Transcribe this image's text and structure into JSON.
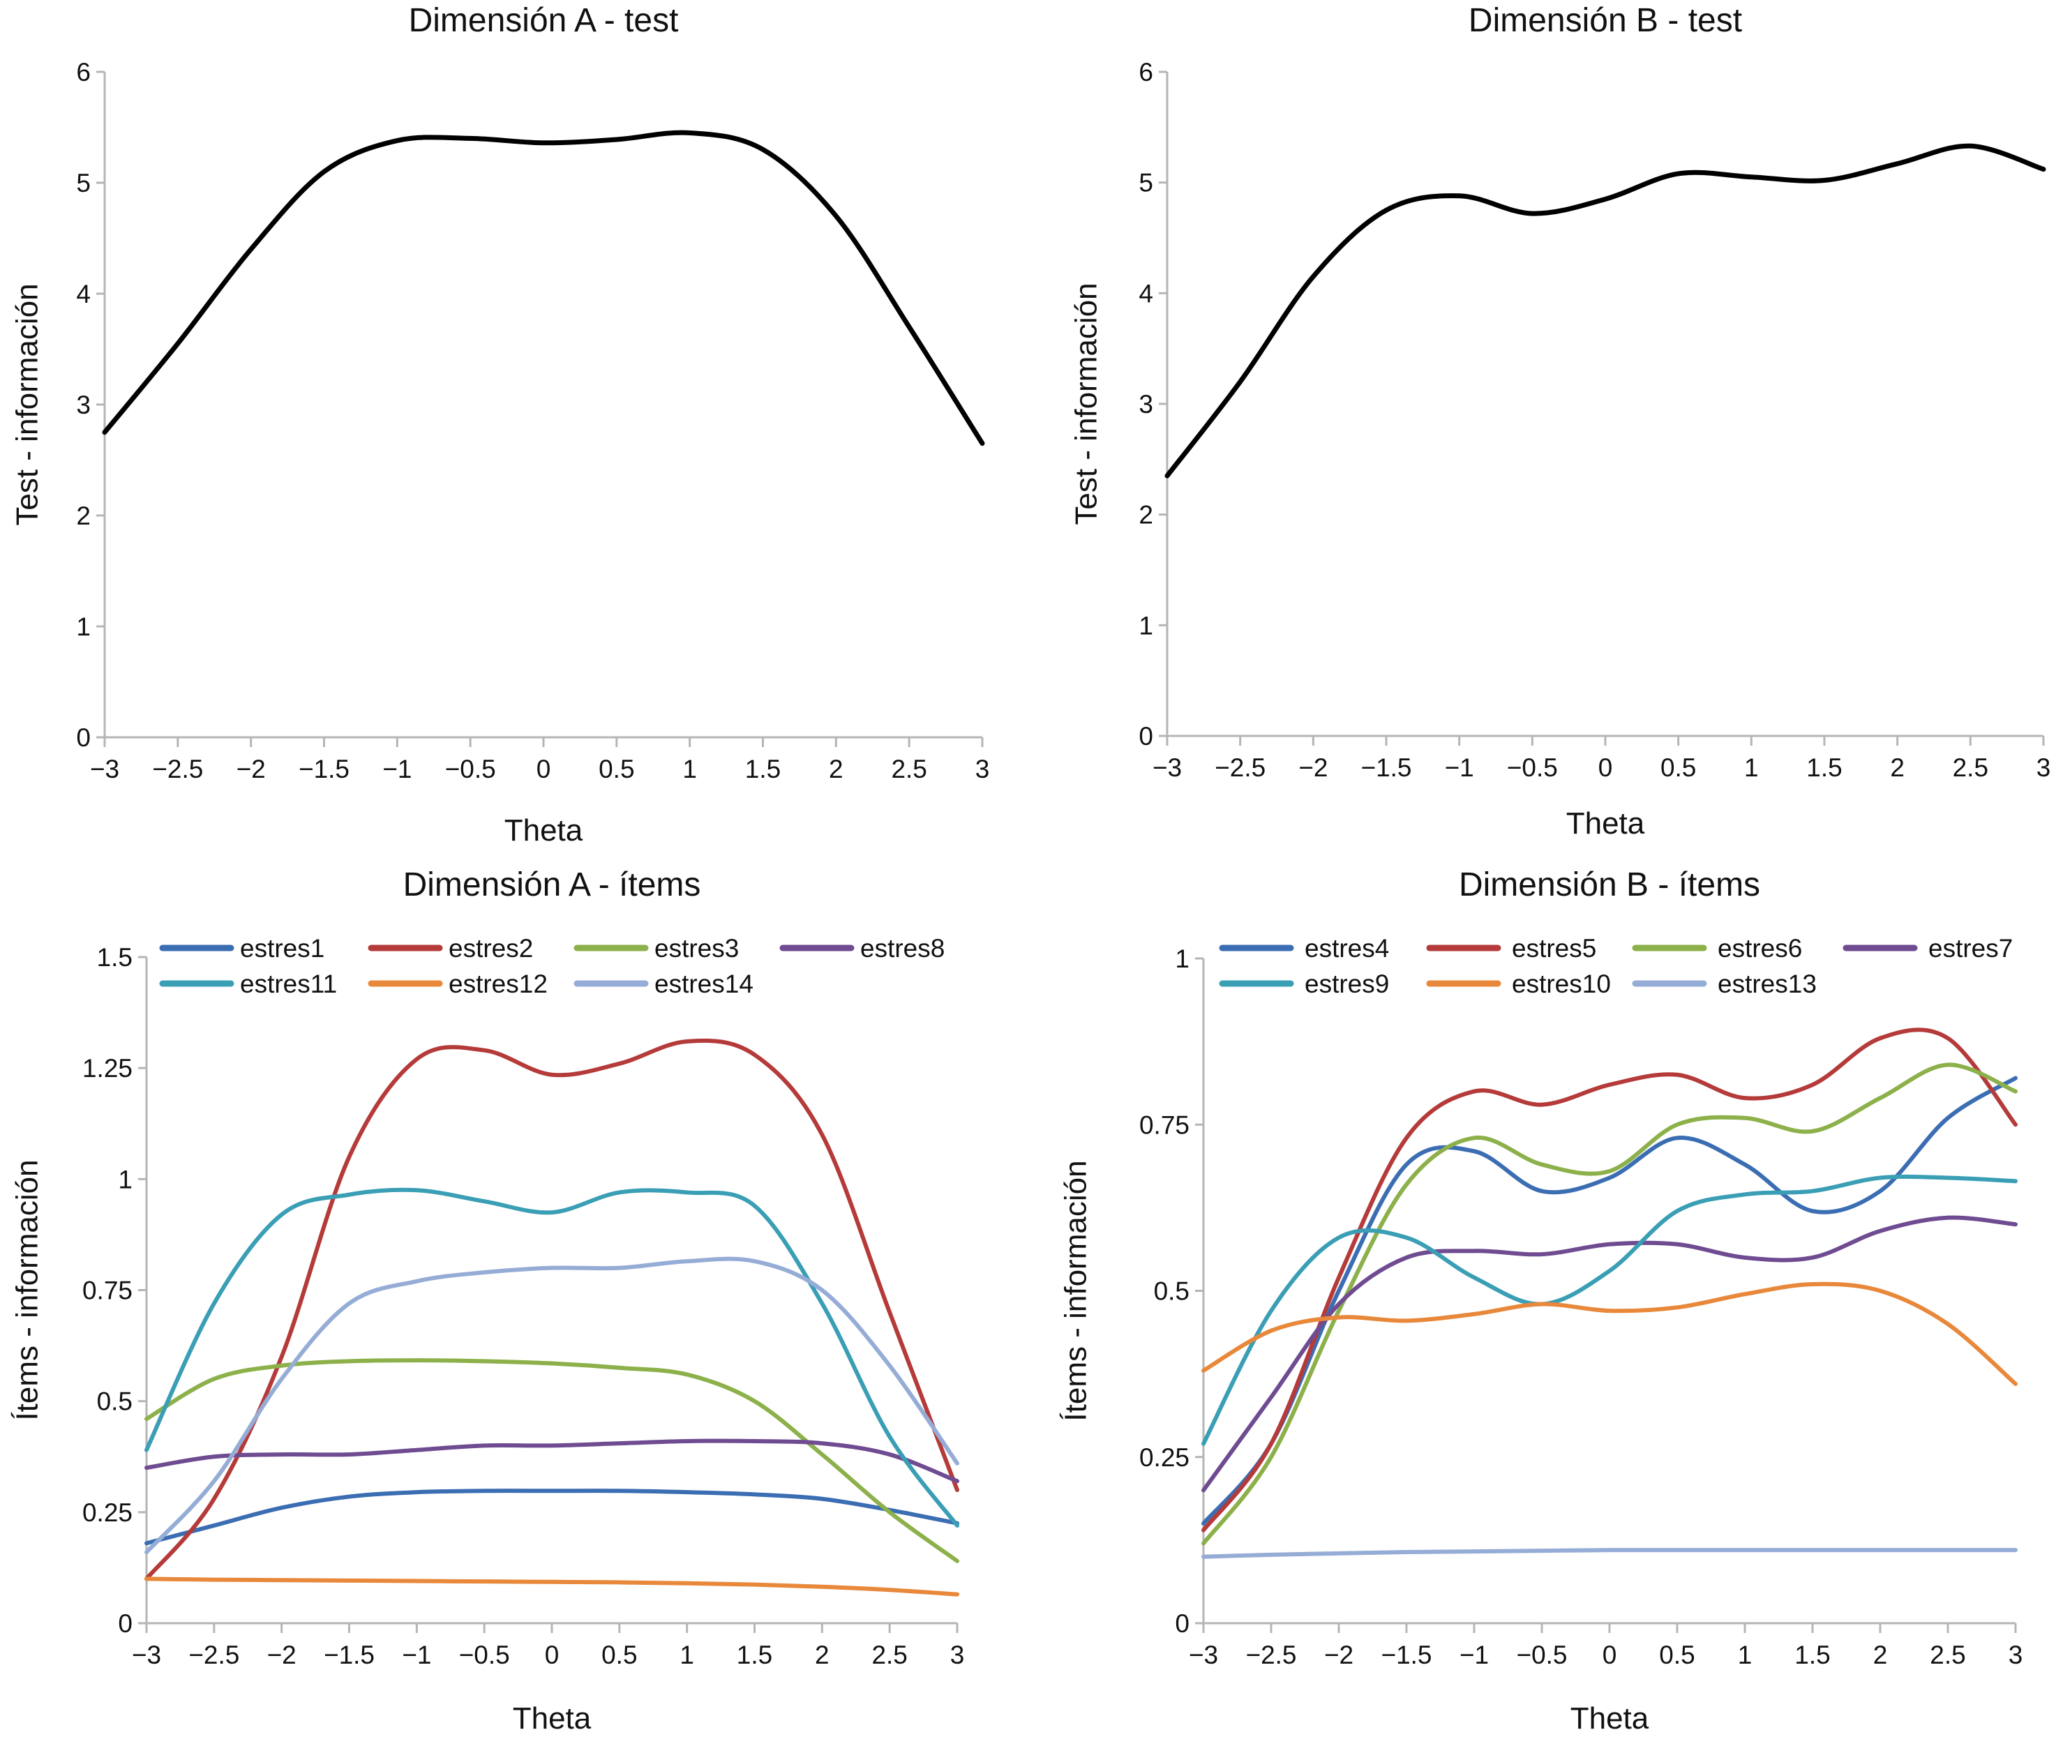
{
  "chart_data": [
    {
      "type": "line",
      "title": "Dimensión A - test",
      "xlabel": "Theta",
      "ylabel": "Test - información",
      "xlim": [
        -3,
        3
      ],
      "ylim": [
        0,
        6
      ],
      "x": [
        -3,
        -2.5,
        -2,
        -1.5,
        -1,
        -0.5,
        0,
        0.5,
        1,
        1.5,
        2,
        2.5,
        3
      ],
      "xtick_labels": [
        "−3",
        "−2.5",
        "−2",
        "−1.5",
        "−1",
        "−0.5",
        "0",
        "0.5",
        "1",
        "1.5",
        "2",
        "2.5",
        "3"
      ],
      "ytick_values": [
        0,
        1,
        2,
        3,
        4,
        5,
        6
      ],
      "ytick_labels": [
        "0",
        "1",
        "2",
        "3",
        "4",
        "5",
        "6"
      ],
      "series": [
        {
          "name": "Test",
          "color": "#000000",
          "values": [
            2.75,
            3.55,
            4.4,
            5.1,
            5.38,
            5.4,
            5.36,
            5.39,
            5.45,
            5.3,
            4.7,
            3.7,
            2.65
          ]
        }
      ]
    },
    {
      "type": "line",
      "title": "Dimensión B - test",
      "xlabel": "Theta",
      "ylabel": "Test - información",
      "xlim": [
        -3,
        3
      ],
      "ylim": [
        0,
        6
      ],
      "x": [
        -3,
        -2.5,
        -2,
        -1.5,
        -1,
        -0.5,
        0,
        0.5,
        1,
        1.5,
        2,
        2.5,
        3
      ],
      "xtick_labels": [
        "−3",
        "−2.5",
        "−2",
        "−1.5",
        "−1",
        "−0.5",
        "0",
        "0.5",
        "1",
        "1.5",
        "2",
        "2.5",
        "3"
      ],
      "ytick_values": [
        0,
        1,
        2,
        3,
        4,
        5,
        6
      ],
      "ytick_labels": [
        "0",
        "1",
        "2",
        "3",
        "4",
        "5",
        "6"
      ],
      "series": [
        {
          "name": "Test",
          "color": "#000000",
          "values": [
            2.35,
            3.2,
            4.15,
            4.75,
            4.88,
            4.72,
            4.85,
            5.08,
            5.05,
            5.02,
            5.17,
            5.33,
            5.12
          ]
        }
      ]
    },
    {
      "type": "line",
      "title": "Dimensión A - ítems",
      "xlabel": "Theta",
      "ylabel": "Ítems - información",
      "xlim": [
        -3,
        3
      ],
      "ylim": [
        0,
        1.5
      ],
      "legend": "top",
      "x": [
        -3,
        -2.5,
        -2,
        -1.5,
        -1,
        -0.5,
        0,
        0.5,
        1,
        1.5,
        2,
        2.5,
        3
      ],
      "xtick_labels": [
        "−3",
        "−2.5",
        "−2",
        "−1.5",
        "−1",
        "−0.5",
        "0",
        "0.5",
        "1",
        "1.5",
        "2",
        "2.5",
        "3"
      ],
      "ytick_values": [
        0,
        0.25,
        0.5,
        0.75,
        1,
        1.25,
        1.5
      ],
      "ytick_labels": [
        "0",
        "0.25",
        "0.5",
        "0.75",
        "1",
        "1.25",
        "1.5"
      ],
      "series": [
        {
          "name": "estres1",
          "color": "#3b6db3",
          "values": [
            0.18,
            0.22,
            0.26,
            0.285,
            0.295,
            0.298,
            0.298,
            0.298,
            0.295,
            0.29,
            0.28,
            0.255,
            0.225
          ]
        },
        {
          "name": "estres2",
          "color": "#b53a3a",
          "values": [
            0.1,
            0.28,
            0.6,
            1.05,
            1.27,
            1.29,
            1.235,
            1.26,
            1.31,
            1.28,
            1.1,
            0.7,
            0.3
          ]
        },
        {
          "name": "estres3",
          "color": "#8cb04a",
          "values": [
            0.46,
            0.55,
            0.58,
            0.59,
            0.592,
            0.59,
            0.585,
            0.575,
            0.56,
            0.5,
            0.38,
            0.25,
            0.14
          ]
        },
        {
          "name": "estres8",
          "color": "#6f4b91",
          "values": [
            0.35,
            0.375,
            0.38,
            0.38,
            0.39,
            0.4,
            0.4,
            0.405,
            0.41,
            0.41,
            0.405,
            0.38,
            0.32
          ]
        },
        {
          "name": "estres11",
          "color": "#3a9eb5",
          "values": [
            0.39,
            0.72,
            0.92,
            0.965,
            0.975,
            0.95,
            0.925,
            0.97,
            0.97,
            0.94,
            0.72,
            0.42,
            0.22
          ]
        },
        {
          "name": "estres12",
          "color": "#e8883a",
          "values": [
            0.1,
            0.098,
            0.097,
            0.096,
            0.095,
            0.094,
            0.093,
            0.092,
            0.09,
            0.087,
            0.082,
            0.075,
            0.065
          ]
        },
        {
          "name": "estres14",
          "color": "#95add6",
          "values": [
            0.16,
            0.32,
            0.55,
            0.72,
            0.77,
            0.79,
            0.8,
            0.8,
            0.815,
            0.815,
            0.75,
            0.58,
            0.36
          ]
        }
      ]
    },
    {
      "type": "line",
      "title": "Dimensión B - ítems",
      "xlabel": "Theta",
      "ylabel": "Ítems - información",
      "xlim": [
        -3,
        3
      ],
      "ylim": [
        0,
        1
      ],
      "legend": "top",
      "x": [
        -3,
        -2.5,
        -2,
        -1.5,
        -1,
        -0.5,
        0,
        0.5,
        1,
        1.5,
        2,
        2.5,
        3
      ],
      "xtick_labels": [
        "−3",
        "−2.5",
        "−2",
        "−1.5",
        "−1",
        "−0.5",
        "0",
        "0.5",
        "1",
        "1.5",
        "2",
        "2.5",
        "3"
      ],
      "ytick_values": [
        0,
        0.25,
        0.5,
        0.75,
        1
      ],
      "ytick_labels": [
        "0",
        "0.25",
        "0.5",
        "0.75",
        "1"
      ],
      "series": [
        {
          "name": "estres4",
          "color": "#3b6db3",
          "values": [
            0.15,
            0.27,
            0.5,
            0.69,
            0.71,
            0.65,
            0.67,
            0.73,
            0.69,
            0.62,
            0.65,
            0.76,
            0.82
          ]
        },
        {
          "name": "estres5",
          "color": "#b53a3a",
          "values": [
            0.14,
            0.27,
            0.52,
            0.73,
            0.8,
            0.78,
            0.81,
            0.825,
            0.79,
            0.81,
            0.88,
            0.88,
            0.75
          ]
        },
        {
          "name": "estres6",
          "color": "#8cb04a",
          "values": [
            0.12,
            0.25,
            0.47,
            0.66,
            0.73,
            0.69,
            0.68,
            0.75,
            0.76,
            0.74,
            0.79,
            0.84,
            0.8
          ]
        },
        {
          "name": "estres7",
          "color": "#6f4b91",
          "values": [
            0.2,
            0.34,
            0.48,
            0.55,
            0.56,
            0.555,
            0.57,
            0.57,
            0.55,
            0.55,
            0.59,
            0.61,
            0.6
          ]
        },
        {
          "name": "estres9",
          "color": "#3a9eb5",
          "values": [
            0.27,
            0.47,
            0.58,
            0.58,
            0.52,
            0.48,
            0.53,
            0.62,
            0.645,
            0.65,
            0.67,
            0.67,
            0.665
          ]
        },
        {
          "name": "estres10",
          "color": "#e8883a",
          "values": [
            0.38,
            0.44,
            0.46,
            0.455,
            0.465,
            0.48,
            0.47,
            0.475,
            0.495,
            0.51,
            0.5,
            0.45,
            0.36
          ]
        },
        {
          "name": "estres13",
          "color": "#95add6",
          "values": [
            0.1,
            0.103,
            0.105,
            0.107,
            0.108,
            0.109,
            0.11,
            0.11,
            0.11,
            0.11,
            0.11,
            0.11,
            0.11
          ]
        }
      ]
    }
  ]
}
